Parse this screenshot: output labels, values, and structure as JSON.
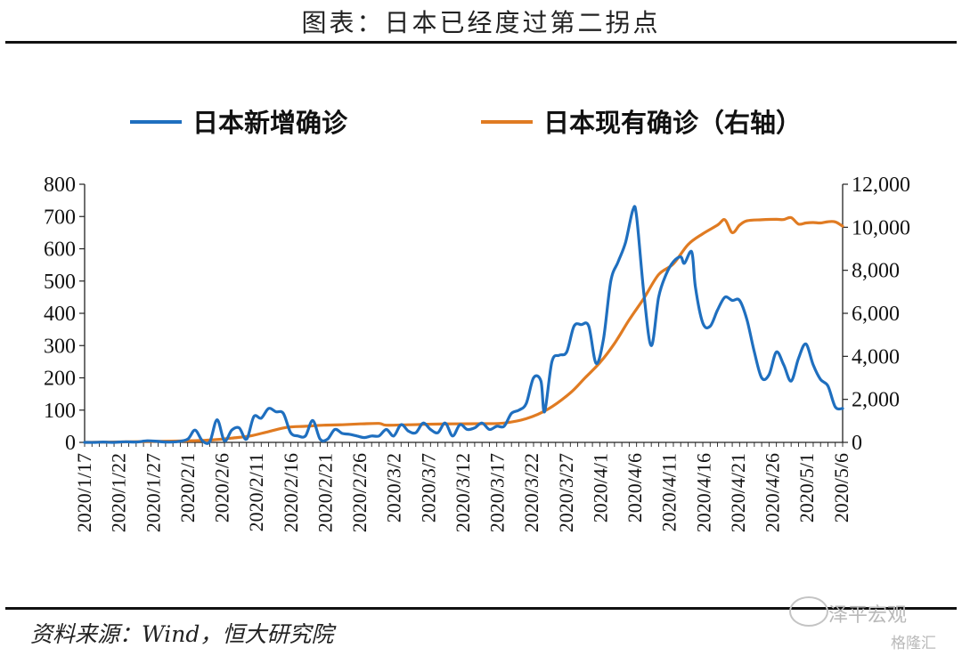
{
  "title": "图表：日本已经度过第二拐点",
  "source": "资料来源：Wind，恒大研究院",
  "watermark": {
    "line1": "泽平宏观",
    "line2": "格隆汇"
  },
  "colors": {
    "new_cases": "#1f6fbf",
    "active_cases": "#e07b22"
  },
  "chart_data": {
    "type": "line",
    "xlabels": [
      "2020/1/17",
      "2020/1/22",
      "2020/1/27",
      "2020/2/1",
      "2020/2/6",
      "2020/2/11",
      "2020/2/16",
      "2020/2/21",
      "2020/2/26",
      "2020/3/2",
      "2020/3/7",
      "2020/3/12",
      "2020/3/17",
      "2020/3/22",
      "2020/3/27",
      "2020/4/1",
      "2020/4/6",
      "2020/4/11",
      "2020/4/16",
      "2020/4/21",
      "2020/4/26",
      "2020/5/1",
      "2020/5/6"
    ],
    "y_left": {
      "range": [
        0,
        800
      ],
      "ticks": [
        "0",
        "100",
        "200",
        "300",
        "400",
        "500",
        "600",
        "700",
        "800"
      ]
    },
    "y_right": {
      "range": [
        0,
        12000
      ],
      "ticks": [
        "0",
        "2,000",
        "4,000",
        "6,000",
        "8,000",
        "10,000",
        "12,000"
      ]
    },
    "legend_position": "top",
    "series": [
      {
        "name": "日本新增确诊",
        "axis": "left",
        "points": [
          [
            0,
            0
          ],
          [
            3,
            0
          ],
          [
            5,
            1
          ],
          [
            8,
            0
          ],
          [
            11,
            2
          ],
          [
            14,
            1
          ],
          [
            17,
            5
          ],
          [
            20,
            3
          ],
          [
            22,
            1
          ],
          [
            25,
            2
          ],
          [
            28,
            10
          ],
          [
            30,
            38
          ],
          [
            32,
            5
          ],
          [
            34,
            2
          ],
          [
            36,
            70
          ],
          [
            38,
            5
          ],
          [
            40,
            38
          ],
          [
            42,
            45
          ],
          [
            44,
            10
          ],
          [
            46,
            80
          ],
          [
            48,
            75
          ],
          [
            50,
            105
          ],
          [
            52,
            95
          ],
          [
            54,
            90
          ],
          [
            56,
            30
          ],
          [
            58,
            20
          ],
          [
            60,
            20
          ],
          [
            62,
            68
          ],
          [
            64,
            10
          ],
          [
            66,
            10
          ],
          [
            68,
            40
          ],
          [
            70,
            28
          ],
          [
            72,
            25
          ],
          [
            74,
            20
          ],
          [
            76,
            15
          ],
          [
            78,
            20
          ],
          [
            80,
            20
          ],
          [
            82,
            40
          ],
          [
            84,
            20
          ],
          [
            86,
            55
          ],
          [
            88,
            35
          ],
          [
            90,
            30
          ],
          [
            92,
            60
          ],
          [
            94,
            40
          ],
          [
            96,
            30
          ],
          [
            98,
            60
          ],
          [
            100,
            20
          ],
          [
            102,
            55
          ],
          [
            104,
            40
          ],
          [
            106,
            45
          ],
          [
            108,
            60
          ],
          [
            110,
            40
          ],
          [
            112,
            50
          ],
          [
            114,
            50
          ],
          [
            116,
            90
          ],
          [
            118,
            100
          ],
          [
            120,
            120
          ],
          [
            122,
            200
          ],
          [
            124,
            190
          ],
          [
            125,
            95
          ],
          [
            127,
            250
          ],
          [
            129,
            270
          ],
          [
            131,
            280
          ],
          [
            133,
            360
          ],
          [
            135,
            365
          ],
          [
            137,
            360
          ],
          [
            139,
            245
          ],
          [
            141,
            320
          ],
          [
            143,
            500
          ],
          [
            145,
            560
          ],
          [
            147,
            620
          ],
          [
            149,
            720
          ],
          [
            150,
            700
          ],
          [
            152,
            460
          ],
          [
            154,
            300
          ],
          [
            156,
            450
          ],
          [
            158,
            520
          ],
          [
            160,
            560
          ],
          [
            162,
            575
          ],
          [
            163,
            555
          ],
          [
            165,
            590
          ],
          [
            166,
            480
          ],
          [
            168,
            370
          ],
          [
            170,
            360
          ],
          [
            172,
            410
          ],
          [
            174,
            450
          ],
          [
            176,
            440
          ],
          [
            178,
            440
          ],
          [
            180,
            380
          ],
          [
            182,
            280
          ],
          [
            184,
            200
          ],
          [
            186,
            210
          ],
          [
            188,
            280
          ],
          [
            190,
            240
          ],
          [
            192,
            190
          ],
          [
            194,
            260
          ],
          [
            196,
            305
          ],
          [
            198,
            240
          ],
          [
            200,
            195
          ],
          [
            202,
            175
          ],
          [
            204,
            110
          ],
          [
            206,
            105
          ]
        ]
      },
      {
        "name": "日本现有确诊（右轴）",
        "axis": "right",
        "points": [
          [
            0,
            0
          ],
          [
            10,
            20
          ],
          [
            20,
            50
          ],
          [
            30,
            80
          ],
          [
            35,
            120
          ],
          [
            40,
            200
          ],
          [
            45,
            300
          ],
          [
            50,
            500
          ],
          [
            55,
            700
          ],
          [
            60,
            750
          ],
          [
            65,
            800
          ],
          [
            70,
            820
          ],
          [
            75,
            860
          ],
          [
            80,
            880
          ],
          [
            82,
            800
          ],
          [
            88,
            820
          ],
          [
            95,
            850
          ],
          [
            100,
            860
          ],
          [
            108,
            870
          ],
          [
            114,
            900
          ],
          [
            120,
            1100
          ],
          [
            126,
            1550
          ],
          [
            132,
            2300
          ],
          [
            136,
            3000
          ],
          [
            140,
            3700
          ],
          [
            144,
            4600
          ],
          [
            148,
            5700
          ],
          [
            152,
            6700
          ],
          [
            156,
            7800
          ],
          [
            160,
            8300
          ],
          [
            164,
            9200
          ],
          [
            168,
            9700
          ],
          [
            172,
            10100
          ],
          [
            174,
            10350
          ],
          [
            176,
            9750
          ],
          [
            178,
            10100
          ],
          [
            180,
            10300
          ],
          [
            184,
            10350
          ],
          [
            188,
            10370
          ],
          [
            190,
            10360
          ],
          [
            192,
            10450
          ],
          [
            194,
            10150
          ],
          [
            196,
            10200
          ],
          [
            198,
            10220
          ],
          [
            200,
            10200
          ],
          [
            202,
            10260
          ],
          [
            204,
            10250
          ],
          [
            206,
            10050
          ]
        ]
      }
    ]
  }
}
